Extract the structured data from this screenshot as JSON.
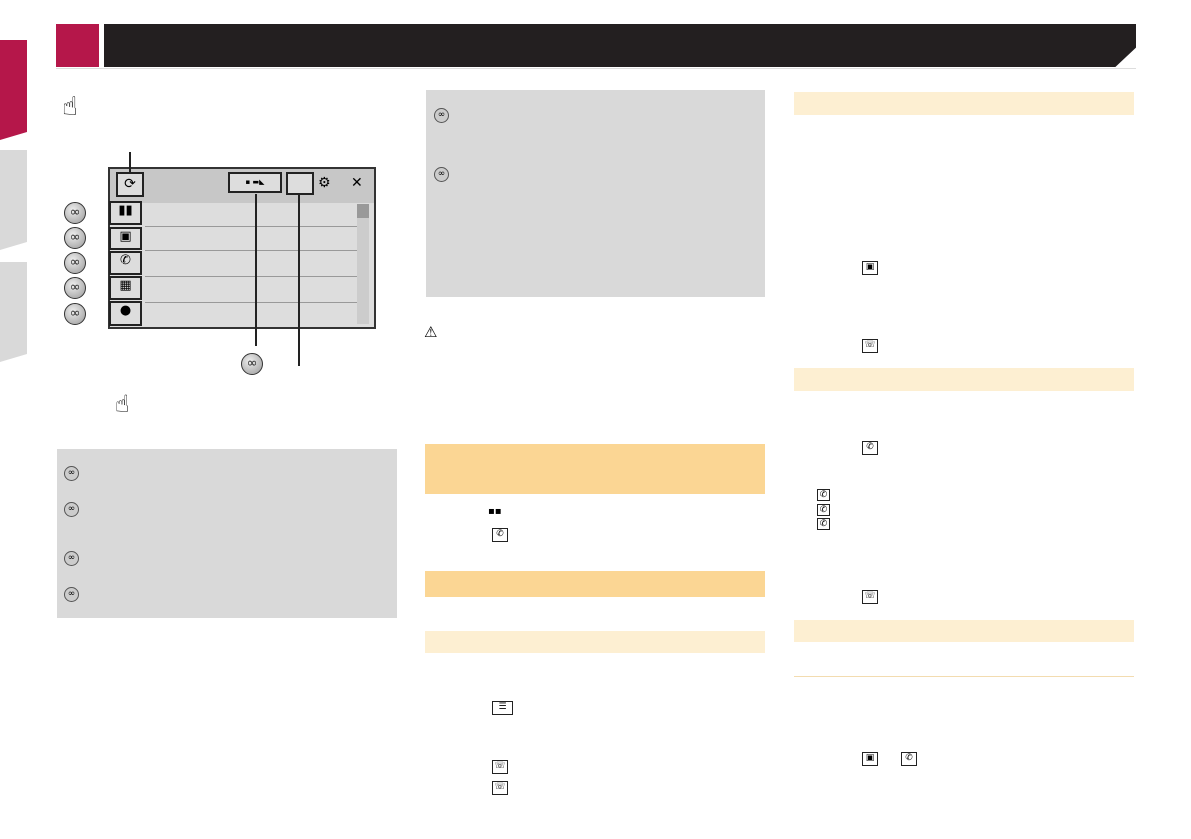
{
  "colors": {
    "brand_red": "#b5174a",
    "header_black": "#231f20",
    "section_orange": "#fbd694",
    "subsection_orange": "#fdefd2",
    "note_gray": "#d9d9d9"
  },
  "icons": [
    "hand-pointer-icon",
    "link-icon",
    "refresh-icon",
    "bookmark-icon",
    "contacts-icon",
    "call-history-icon",
    "keypad-icon",
    "voice-icon",
    "settings-icon",
    "close-icon",
    "warning-icon",
    "grid-icon",
    "phone-icon",
    "menu-list-icon",
    "phone-handset-icon"
  ]
}
